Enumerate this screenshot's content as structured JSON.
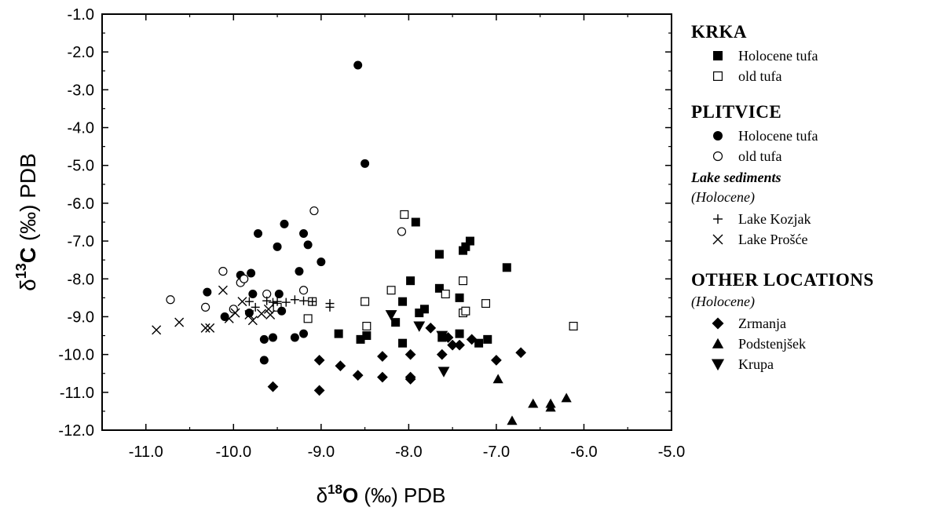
{
  "chart_data": {
    "type": "scatter",
    "xlabel": {
      "prefix": "δ",
      "sup": "18",
      "element": "O",
      "suffix": " (‰) PDB"
    },
    "ylabel": {
      "prefix": "δ",
      "sup": "13",
      "element": "C",
      "suffix": " (‰) PDB"
    },
    "xlim": [
      -11.5,
      -5.0
    ],
    "ylim": [
      -12.0,
      -1.0
    ],
    "x_ticks": [
      -11.0,
      -10.0,
      -9.0,
      -8.0,
      -7.0,
      -6.0,
      -5.0
    ],
    "x_tick_labels": [
      "-11.0",
      "-10.0",
      "-9.0",
      "-8.0",
      "-7.0",
      "-6.0",
      "-5.0"
    ],
    "y_ticks": [
      -1.0,
      -2.0,
      -3.0,
      -4.0,
      -5.0,
      -6.0,
      -7.0,
      -8.0,
      -9.0,
      -10.0,
      -11.0,
      -12.0
    ],
    "y_tick_labels": [
      "-1.0",
      "-2.0",
      "-3.0",
      "-4.0",
      "-5.0",
      "-6.0",
      "-7.0",
      "-8.0",
      "-9.0",
      "-10.0",
      "-11.0",
      "-12.0"
    ],
    "grid": false,
    "legend_position": "right, outside plot",
    "legend_groups": [
      {
        "title": "KRKA",
        "items": [
          {
            "marker": "square-filled",
            "label": "Holocene tufa",
            "series_index": 0
          },
          {
            "marker": "square-open",
            "label": "old tufa",
            "series_index": 1
          }
        ]
      },
      {
        "title": "PLITVICE",
        "items": [
          {
            "marker": "circle-filled",
            "label": "Holocene tufa",
            "series_index": 2
          },
          {
            "marker": "circle-open",
            "label": "old tufa",
            "series_index": 3
          }
        ]
      },
      {
        "title": "Lake sediments",
        "title_style": "bold-italic",
        "subtitle": "(Holocene)",
        "items": [
          {
            "marker": "plus",
            "label": "Lake  Kozjak",
            "series_index": 4
          },
          {
            "marker": "cross",
            "label": "Lake  Prošće",
            "series_index": 5
          }
        ]
      },
      {
        "title": "OTHER LOCATIONS",
        "subtitle": "(Holocene)",
        "items": [
          {
            "marker": "diamond-filled",
            "label": "Zrmanja",
            "series_index": 6
          },
          {
            "marker": "triangle-up-filled",
            "label": "Podstenjšek",
            "series_index": 7
          },
          {
            "marker": "triangle-down-filled",
            "label": "Krupa",
            "series_index": 8
          }
        ]
      }
    ],
    "series": [
      {
        "marker": "square-filled",
        "points": [
          [
            -8.8,
            -9.45
          ],
          [
            -8.55,
            -9.6
          ],
          [
            -8.48,
            -9.5
          ],
          [
            -8.15,
            -9.15
          ],
          [
            -8.07,
            -8.6
          ],
          [
            -8.07,
            -9.7
          ],
          [
            -7.98,
            -8.05
          ],
          [
            -7.92,
            -6.5
          ],
          [
            -7.88,
            -8.9
          ],
          [
            -7.82,
            -8.8
          ],
          [
            -7.65,
            -7.35
          ],
          [
            -7.65,
            -8.25
          ],
          [
            -7.62,
            -9.55
          ],
          [
            -7.42,
            -8.5
          ],
          [
            -7.42,
            -9.45
          ],
          [
            -7.38,
            -7.25
          ],
          [
            -7.35,
            -7.15
          ],
          [
            -7.3,
            -7.0
          ],
          [
            -7.2,
            -9.7
          ],
          [
            -7.1,
            -9.6
          ],
          [
            -6.88,
            -7.7
          ]
        ]
      },
      {
        "marker": "square-open",
        "points": [
          [
            -9.5,
            -8.75
          ],
          [
            -9.15,
            -9.05
          ],
          [
            -9.1,
            -8.6
          ],
          [
            -8.5,
            -8.6
          ],
          [
            -8.48,
            -9.25
          ],
          [
            -8.2,
            -8.3
          ],
          [
            -8.05,
            -6.3
          ],
          [
            -7.58,
            -8.4
          ],
          [
            -7.38,
            -8.05
          ],
          [
            -7.38,
            -8.9
          ],
          [
            -7.35,
            -8.85
          ],
          [
            -7.12,
            -8.65
          ],
          [
            -6.12,
            -9.25
          ]
        ]
      },
      {
        "marker": "circle-filled",
        "points": [
          [
            -10.3,
            -8.35
          ],
          [
            -10.1,
            -9.0
          ],
          [
            -9.92,
            -7.9
          ],
          [
            -9.82,
            -8.9
          ],
          [
            -9.8,
            -7.85
          ],
          [
            -9.78,
            -8.4
          ],
          [
            -9.72,
            -6.8
          ],
          [
            -9.65,
            -9.6
          ],
          [
            -9.65,
            -10.15
          ],
          [
            -9.55,
            -9.55
          ],
          [
            -9.5,
            -7.15
          ],
          [
            -9.48,
            -8.4
          ],
          [
            -9.45,
            -8.85
          ],
          [
            -9.42,
            -6.55
          ],
          [
            -9.3,
            -9.55
          ],
          [
            -9.25,
            -7.8
          ],
          [
            -9.2,
            -6.8
          ],
          [
            -9.2,
            -9.45
          ],
          [
            -9.15,
            -7.1
          ],
          [
            -9.0,
            -7.55
          ],
          [
            -8.58,
            -2.35
          ],
          [
            -8.5,
            -4.95
          ]
        ]
      },
      {
        "marker": "circle-open",
        "points": [
          [
            -10.72,
            -8.55
          ],
          [
            -10.32,
            -8.75
          ],
          [
            -10.12,
            -7.8
          ],
          [
            -10.0,
            -8.8
          ],
          [
            -9.92,
            -8.1
          ],
          [
            -9.88,
            -8.0
          ],
          [
            -9.62,
            -8.4
          ],
          [
            -9.2,
            -8.3
          ],
          [
            -9.08,
            -6.2
          ],
          [
            -8.08,
            -6.75
          ]
        ]
      },
      {
        "marker": "plus",
        "points": [
          [
            -9.82,
            -8.6
          ],
          [
            -9.75,
            -8.75
          ],
          [
            -9.62,
            -8.58
          ],
          [
            -9.55,
            -8.62
          ],
          [
            -9.5,
            -8.6
          ],
          [
            -9.4,
            -8.62
          ],
          [
            -9.3,
            -8.55
          ],
          [
            -9.2,
            -8.58
          ],
          [
            -9.1,
            -8.6
          ],
          [
            -8.9,
            -8.65
          ],
          [
            -8.9,
            -8.75
          ]
        ]
      },
      {
        "marker": "cross",
        "points": [
          [
            -10.88,
            -9.35
          ],
          [
            -10.62,
            -9.15
          ],
          [
            -10.32,
            -9.3
          ],
          [
            -10.27,
            -9.3
          ],
          [
            -10.12,
            -8.3
          ],
          [
            -10.05,
            -9.05
          ],
          [
            -9.98,
            -8.9
          ],
          [
            -9.9,
            -8.6
          ],
          [
            -9.82,
            -8.95
          ],
          [
            -9.78,
            -9.1
          ],
          [
            -9.68,
            -8.92
          ],
          [
            -9.6,
            -8.8
          ],
          [
            -9.58,
            -8.95
          ]
        ]
      },
      {
        "marker": "diamond-filled",
        "points": [
          [
            -9.55,
            -10.85
          ],
          [
            -9.02,
            -10.15
          ],
          [
            -9.02,
            -10.95
          ],
          [
            -8.78,
            -10.3
          ],
          [
            -8.58,
            -10.55
          ],
          [
            -8.3,
            -10.05
          ],
          [
            -8.3,
            -10.6
          ],
          [
            -7.98,
            -10.0
          ],
          [
            -7.98,
            -10.6
          ],
          [
            -7.98,
            -10.65
          ],
          [
            -7.75,
            -9.3
          ],
          [
            -7.62,
            -10.0
          ],
          [
            -7.55,
            -9.55
          ],
          [
            -7.5,
            -9.75
          ],
          [
            -7.42,
            -9.75
          ],
          [
            -7.28,
            -9.6
          ],
          [
            -7.0,
            -10.15
          ],
          [
            -6.72,
            -9.95
          ]
        ]
      },
      {
        "marker": "triangle-up-filled",
        "points": [
          [
            -6.98,
            -10.65
          ],
          [
            -6.82,
            -11.75
          ],
          [
            -6.58,
            -11.3
          ],
          [
            -6.38,
            -11.3
          ],
          [
            -6.38,
            -11.4
          ],
          [
            -6.2,
            -11.15
          ]
        ]
      },
      {
        "marker": "triangle-down-filled",
        "points": [
          [
            -8.2,
            -8.95
          ],
          [
            -7.88,
            -9.25
          ],
          [
            -7.62,
            -9.5
          ],
          [
            -7.6,
            -10.45
          ]
        ]
      }
    ]
  }
}
